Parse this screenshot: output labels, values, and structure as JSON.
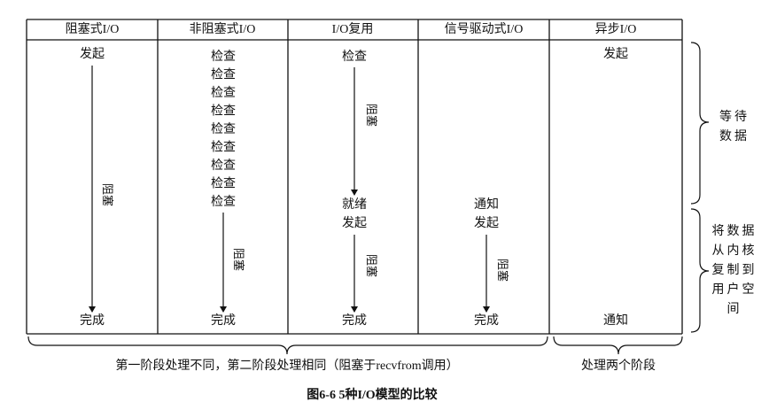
{
  "columns": [
    {
      "header": "阻塞式I/O",
      "start": "发起",
      "block": "阻塞",
      "end": "完成"
    },
    {
      "header": "非阻塞式I/O",
      "checks": [
        "检查",
        "检查",
        "检查",
        "检查",
        "检查",
        "检查",
        "检查",
        "检查",
        "检查"
      ],
      "block": "阻塞",
      "end": "完成"
    },
    {
      "header": "I/O复用",
      "check": "检查",
      "block1": "阻塞",
      "ready": "就绪",
      "start": "发起",
      "block2": "阻塞",
      "end": "完成"
    },
    {
      "header": "信号驱动式I/O",
      "notify": "通知",
      "start": "发起",
      "block": "阻塞",
      "end": "完成"
    },
    {
      "header": "异步I/O",
      "start": "发起",
      "notify": "通知"
    }
  ],
  "phases": [
    {
      "lines": [
        "等待",
        "数据"
      ]
    },
    {
      "lines": [
        "将数据",
        "从内核",
        "复制到",
        "用户空",
        "间"
      ]
    }
  ],
  "footer": {
    "left": "第一阶段处理不同，第二阶段处理相同（阻塞于recvfrom调用）",
    "right": "处理两个阶段"
  },
  "caption": "图6-6  5种I/O模型的比较"
}
